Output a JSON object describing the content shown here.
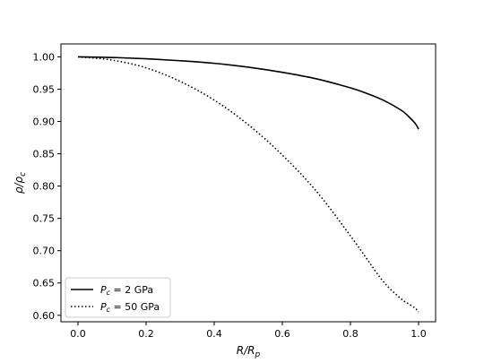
{
  "chart_data": {
    "type": "line",
    "title": "",
    "xlabel": {
      "main": "R/R",
      "sub": "p"
    },
    "ylabel": {
      "main": "ρ/ρ",
      "sub": "c"
    },
    "xlim": [
      -0.05,
      1.05
    ],
    "ylim": [
      0.59,
      1.02
    ],
    "xticks": [
      0.0,
      0.2,
      0.4,
      0.6,
      0.8,
      1.0
    ],
    "xtick_labels": [
      "0.0",
      "0.2",
      "0.4",
      "0.6",
      "0.8",
      "1.0"
    ],
    "yticks": [
      0.6,
      0.65,
      0.7,
      0.75,
      0.8,
      0.85,
      0.9,
      0.95,
      1.0
    ],
    "ytick_labels": [
      "0.60",
      "0.65",
      "0.70",
      "0.75",
      "0.80",
      "0.85",
      "0.90",
      "0.95",
      "1.00"
    ],
    "grid": false,
    "legend_position": "lower-left",
    "series": [
      {
        "name": "P_c = 2 GPa",
        "legend": {
          "var": "P",
          "sub": "c",
          "rest": " = 2 GPa"
        },
        "style": "solid",
        "color": "#000000",
        "x": [
          0.0,
          0.1,
          0.2,
          0.3,
          0.4,
          0.5,
          0.6,
          0.7,
          0.8,
          0.85,
          0.9,
          0.95,
          0.97,
          0.99,
          1.0
        ],
        "y": [
          1.0,
          0.999,
          0.997,
          0.994,
          0.99,
          0.984,
          0.976,
          0.966,
          0.952,
          0.943,
          0.932,
          0.917,
          0.908,
          0.897,
          0.888
        ]
      },
      {
        "name": "P_c = 50 GPa",
        "legend": {
          "var": "P",
          "sub": "c",
          "rest": " = 50 GPa"
        },
        "style": "dotted",
        "color": "#000000",
        "x": [
          0.0,
          0.1,
          0.2,
          0.3,
          0.4,
          0.5,
          0.6,
          0.7,
          0.8,
          0.85,
          0.9,
          0.95,
          0.97,
          0.99,
          1.0
        ],
        "y": [
          1.0,
          0.995,
          0.983,
          0.962,
          0.933,
          0.895,
          0.848,
          0.792,
          0.723,
          0.686,
          0.65,
          0.625,
          0.618,
          0.611,
          0.605
        ]
      }
    ]
  }
}
